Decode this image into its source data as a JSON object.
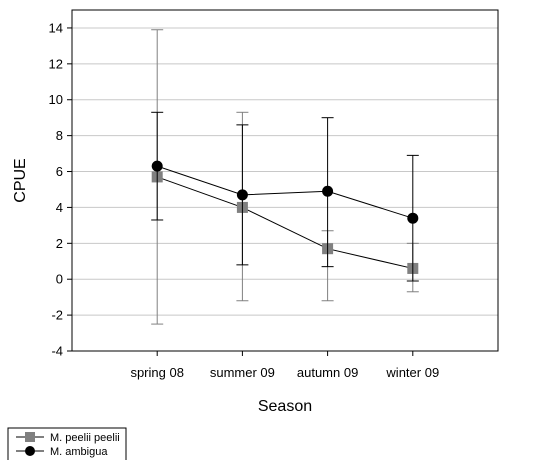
{
  "chart_data": {
    "type": "line",
    "title": "",
    "xlabel": "Season",
    "ylabel": "CPUE",
    "categories": [
      "spring 08",
      "summer 09",
      "autumn 09",
      "winter 09"
    ],
    "ylim": [
      -4,
      15
    ],
    "yticks": [
      -4,
      -2,
      0,
      2,
      4,
      6,
      8,
      10,
      12,
      14
    ],
    "grid": true,
    "legend_position": "bottom-left",
    "series": [
      {
        "name": "M. peelii peelii",
        "marker": "square",
        "color": "#808080",
        "values": [
          5.7,
          4.0,
          1.7,
          0.6
        ],
        "err_low": [
          -2.5,
          -1.2,
          -1.2,
          -0.7
        ],
        "err_high": [
          13.9,
          9.3,
          2.7,
          2.0
        ]
      },
      {
        "name": "M. ambigua",
        "marker": "circle",
        "color": "#000000",
        "values": [
          6.3,
          4.7,
          4.9,
          3.4
        ],
        "err_low": [
          3.3,
          0.8,
          0.7,
          -0.1
        ],
        "err_high": [
          9.3,
          8.6,
          9.0,
          6.9
        ]
      }
    ]
  }
}
